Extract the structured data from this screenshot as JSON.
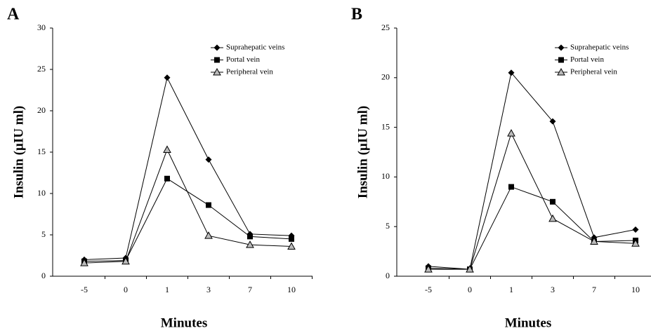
{
  "chart_data": [
    {
      "type": "line",
      "panel_label": "A",
      "ylabel": "Insulin (µIU ml)",
      "xlabel": "Minutes",
      "categories": [
        "-5",
        "0",
        "1",
        "3",
        "7",
        "10"
      ],
      "ylim": [
        0,
        30
      ],
      "yticks": [
        0,
        5,
        10,
        15,
        20,
        25,
        30
      ],
      "legend": "upper right",
      "series": [
        {
          "name": "Suprahepatic veins",
          "color": "#000000",
          "marker": "diamond",
          "values": [
            2.0,
            2.2,
            24,
            14.1,
            5.1,
            4.9
          ]
        },
        {
          "name": "Portal vein",
          "color": "#000000",
          "marker": "square",
          "values": [
            1.8,
            1.9,
            11.8,
            8.6,
            4.8,
            4.5
          ]
        },
        {
          "name": "Peripheral vein",
          "color": "#000000",
          "marker": "triangle",
          "values": [
            1.6,
            1.8,
            15.3,
            4.9,
            3.8,
            3.6
          ]
        }
      ]
    },
    {
      "type": "line",
      "panel_label": "B",
      "ylabel": "Insulin (µIU ml)",
      "xlabel": "Minutes",
      "categories": [
        "-5",
        "0",
        "1",
        "3",
        "7",
        "10"
      ],
      "ylim": [
        0,
        25
      ],
      "yticks": [
        0,
        5,
        10,
        15,
        20,
        25
      ],
      "legend": "upper right",
      "series": [
        {
          "name": "Suprahepatic veins",
          "color": "#000000",
          "marker": "diamond",
          "values": [
            1.0,
            0.7,
            20.5,
            15.6,
            3.9,
            4.7
          ]
        },
        {
          "name": "Portal vein",
          "color": "#000000",
          "marker": "square",
          "values": [
            0.8,
            0.7,
            9.0,
            7.5,
            3.5,
            3.6
          ]
        },
        {
          "name": "Peripheral vein",
          "color": "#000000",
          "marker": "triangle",
          "values": [
            0.7,
            0.7,
            14.4,
            5.8,
            3.5,
            3.3
          ]
        }
      ]
    }
  ]
}
